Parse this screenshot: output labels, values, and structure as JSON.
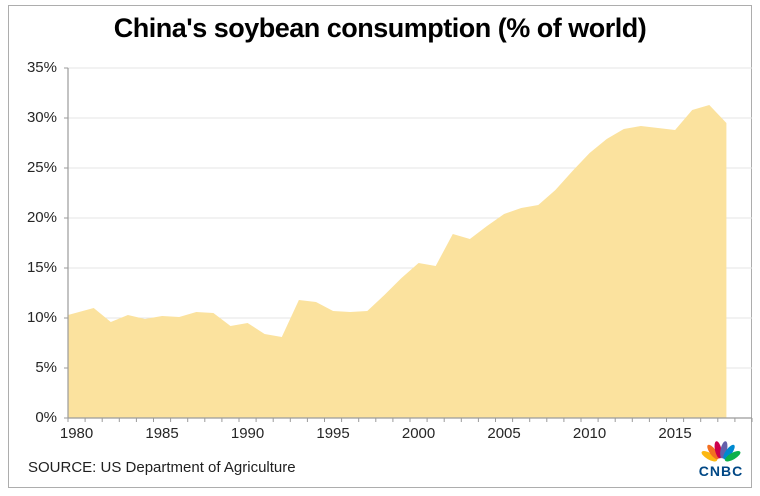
{
  "title": "China's soybean consumption (% of world)",
  "source_note": "SOURCE: US Department of Agriculture",
  "logo": {
    "text": "CNBC",
    "text_color": "#004785",
    "feather_colors": [
      "#FCB711",
      "#F37021",
      "#CC004C",
      "#6460AA",
      "#0089D0",
      "#0DB14B"
    ]
  },
  "chart_data": {
    "type": "area",
    "title": "China's soybean consumption (% of world)",
    "x": [
      1980,
      1981,
      1982,
      1983,
      1984,
      1985,
      1986,
      1987,
      1988,
      1989,
      1990,
      1991,
      1992,
      1993,
      1994,
      1995,
      1996,
      1997,
      1998,
      1999,
      2000,
      2001,
      2002,
      2003,
      2004,
      2005,
      2006,
      2007,
      2008,
      2009,
      2010,
      2011,
      2012,
      2013,
      2014,
      2015,
      2016,
      2017,
      2018
    ],
    "values": [
      10.3,
      11.0,
      9.6,
      10.3,
      9.9,
      10.2,
      10.1,
      10.6,
      10.5,
      9.2,
      9.5,
      8.4,
      8.1,
      11.8,
      11.6,
      10.7,
      10.6,
      10.7,
      12.3,
      14.0,
      15.5,
      15.2,
      18.4,
      17.9,
      19.2,
      20.4,
      21.0,
      21.3,
      22.8,
      24.7,
      26.5,
      27.9,
      28.9,
      29.2,
      29.0,
      28.8,
      30.8,
      31.3,
      29.5
    ],
    "ylim": [
      0,
      35
    ],
    "y_tick_step": 5,
    "y_tick_labels": [
      "0%",
      "5%",
      "10%",
      "15%",
      "20%",
      "25%",
      "30%",
      "35%"
    ],
    "x_tick_labels": [
      "1980",
      "1985",
      "1990",
      "1995",
      "2000",
      "2005",
      "2010",
      "2015"
    ],
    "xlabel": "",
    "ylabel": "",
    "area_color": "#FBE29E",
    "grid": true,
    "gridline_color": "#E4E4E4",
    "axis_color": "#9B9B9B",
    "label_color": "#262626",
    "legend": false
  }
}
